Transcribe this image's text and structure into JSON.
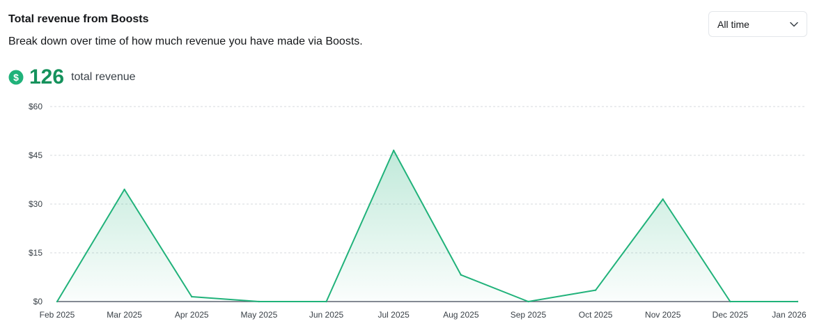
{
  "header": {
    "title": "Total revenue from Boosts",
    "subtitle": "Break down over time of how much revenue you have made via Boosts."
  },
  "range_select": {
    "value": "All time"
  },
  "summary": {
    "icon": "dollar-icon",
    "value": "126",
    "label": "total revenue"
  },
  "colors": {
    "accent": "#20b27a",
    "value": "#15925c",
    "axis": "#5c6470",
    "grid": "#d5d9de"
  },
  "chart_data": {
    "type": "area",
    "categories": [
      "Feb 2025",
      "Mar 2025",
      "Apr 2025",
      "May 2025",
      "Jun 2025",
      "Jul 2025",
      "Aug 2025",
      "Sep 2025",
      "Oct 2025",
      "Nov 2025",
      "Dec 2025",
      "Jan 2026"
    ],
    "values": [
      0,
      34.5,
      1.5,
      0,
      0,
      46.5,
      8.2,
      0,
      3.5,
      31.5,
      0,
      0
    ],
    "y_ticks": [
      "$0",
      "$15",
      "$30",
      "$45",
      "$60"
    ],
    "y_tick_values": [
      0,
      15,
      30,
      45,
      60
    ],
    "ylim": [
      0,
      60
    ],
    "grid": true
  }
}
